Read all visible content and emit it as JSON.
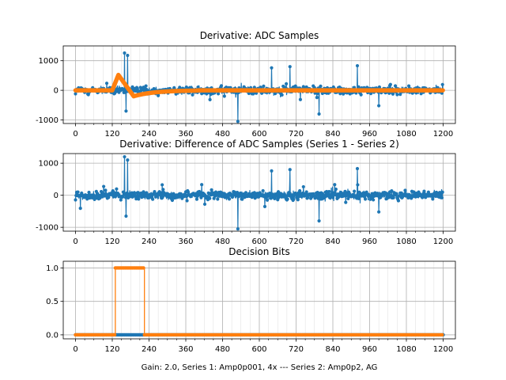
{
  "figure": {
    "xlabel": "Gain: 2.0, Series 1: Amp0p001, 4x --- Series 2: Amp0p2, AG"
  },
  "colors": {
    "series1": "#1f77b4",
    "series2": "#ff7f0e",
    "grid": "#b0b0b0"
  },
  "chart_data": [
    {
      "type": "line",
      "title": "Derivative: ADC Samples",
      "xlim": [
        -40,
        1240
      ],
      "ylim": [
        -1120,
        1500
      ],
      "xticks": [
        0,
        120,
        240,
        360,
        480,
        600,
        720,
        840,
        960,
        1080,
        1200
      ],
      "yticks": [
        -1000,
        0,
        1000
      ],
      "series": [
        {
          "name": "Series 1",
          "style": "stem-noise",
          "length": 1200,
          "base_amplitude": 190,
          "bursts": [
            {
              "x": 160,
              "value": 1260
            },
            {
              "x": 170,
              "value": 1180
            },
            {
              "x": 165,
              "value": -700
            },
            {
              "x": 530,
              "value": -1050
            },
            {
              "x": 640,
              "value": 760
            },
            {
              "x": 700,
              "value": 800
            },
            {
              "x": 920,
              "value": 830
            },
            {
              "x": 795,
              "value": -800
            },
            {
              "x": 990,
              "value": -520
            }
          ]
        },
        {
          "name": "Series 2",
          "style": "pulse",
          "length": 1200,
          "pulse": {
            "start": 120,
            "peak_x": 140,
            "peak": 520,
            "undershoot_x": 190,
            "undershoot": -200,
            "settle_x": 400
          }
        }
      ]
    },
    {
      "type": "line",
      "title": "Derivative: Difference of ADC Samples (Series 1 - Series 2)",
      "xlim": [
        -40,
        1240
      ],
      "ylim": [
        -1120,
        1300
      ],
      "xticks": [
        0,
        120,
        240,
        360,
        480,
        600,
        720,
        840,
        960,
        1080,
        1200
      ],
      "yticks": [
        -1000,
        0,
        1000
      ],
      "series": [
        {
          "name": "Series 1 - Series 2",
          "style": "stem-noise",
          "length": 1200,
          "base_amplitude": 190,
          "bursts": [
            {
              "x": 160,
              "value": 1200
            },
            {
              "x": 170,
              "value": 1100
            },
            {
              "x": 165,
              "value": -650
            },
            {
              "x": 530,
              "value": -1050
            },
            {
              "x": 640,
              "value": 760
            },
            {
              "x": 700,
              "value": 800
            },
            {
              "x": 920,
              "value": 830
            },
            {
              "x": 795,
              "value": -800
            },
            {
              "x": 990,
              "value": -520
            }
          ]
        }
      ]
    },
    {
      "type": "line",
      "title": "Decision Bits",
      "xlim": [
        -40,
        1240
      ],
      "ylim": [
        -0.06,
        1.1
      ],
      "xticks": [
        0,
        120,
        240,
        360,
        480,
        600,
        720,
        840,
        960,
        1080,
        1200
      ],
      "yticks": [
        0.0,
        0.5,
        1.0
      ],
      "ytick_labels": [
        "0.0",
        "0.5",
        "1.0"
      ],
      "series": [
        {
          "name": "Series 1",
          "style": "step",
          "segments": [
            {
              "from": 0,
              "to": 1200,
              "value": 0
            }
          ]
        },
        {
          "name": "Series 2",
          "style": "step",
          "segments": [
            {
              "from": 0,
              "to": 130,
              "value": 0
            },
            {
              "from": 130,
              "to": 225,
              "value": 1
            },
            {
              "from": 225,
              "to": 1200,
              "value": 0
            }
          ]
        }
      ]
    }
  ]
}
